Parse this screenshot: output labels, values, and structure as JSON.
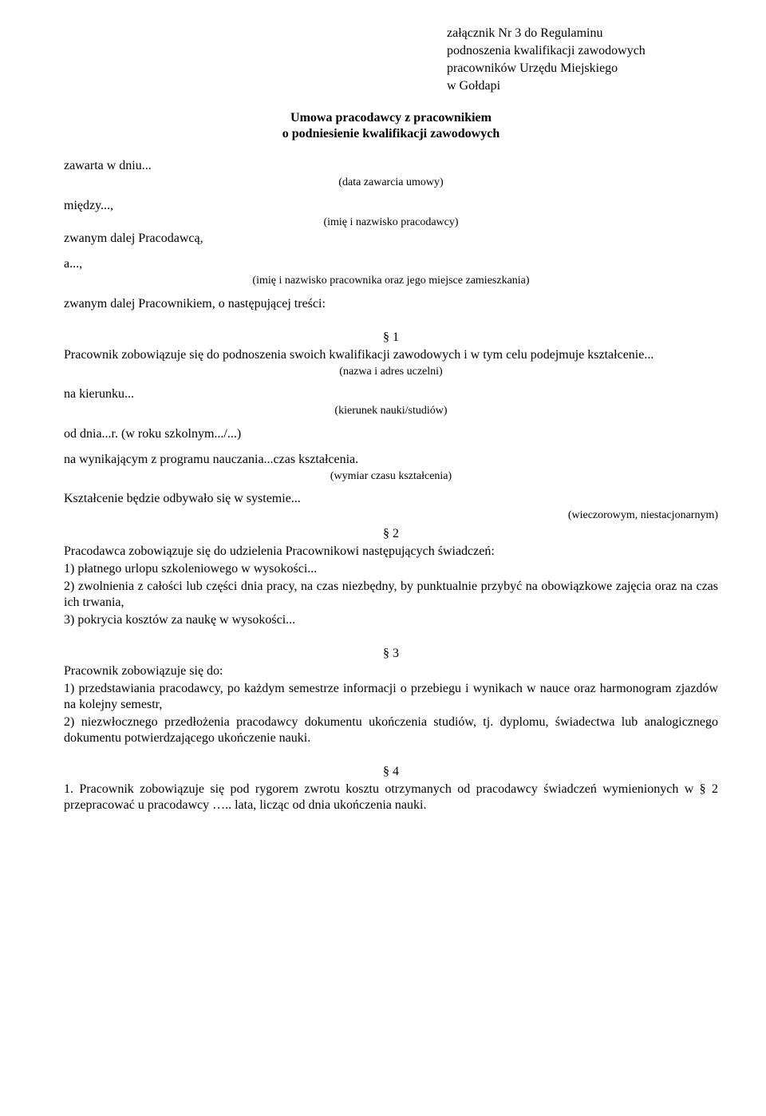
{
  "attachment": {
    "line1": "załącznik Nr 3 do Regulaminu",
    "line2": "podnoszenia kwalifikacji zawodowych",
    "line3": "pracowników Urzędu Miejskiego",
    "line4": "w Gołdapi"
  },
  "title": {
    "line1": "Umowa pracodawcy z pracownikiem",
    "line2": "o podniesienie kwalifikacji zawodowych"
  },
  "intro": {
    "zawarta": "zawarta w dniu...",
    "zawarta_caption": "(data zawarcia umowy)",
    "miedzy": "między...,",
    "miedzy_caption": "(imię i nazwisko pracodawcy)",
    "zwanym_pracodawca": "zwanym dalej Pracodawcą,",
    "a": "a...,",
    "a_caption": "(imię i nazwisko pracownika oraz jego miejsce zamieszkania)",
    "zwanym_pracownikiem": "zwanym dalej Pracownikiem, o następującej treści:"
  },
  "p1": {
    "num": "§ 1",
    "text": "Pracownik zobowiązuje się do podnoszenia swoich kwalifikacji zawodowych i w tym celu podejmuje kształcenie...",
    "caption1": "(nazwa i adres uczelni)",
    "kierunek": "na kierunku...",
    "caption2": "(kierunek nauki/studiów)",
    "od_dnia": "od dnia...r. (w roku szkolnym.../...)",
    "na_wynikajacym": "na wynikającym z programu nauczania...czas kształcenia.",
    "caption3": "(wymiar czasu kształcenia)",
    "ksztalcenie": "Kształcenie będzie odbywało się w systemie...",
    "caption4": "(wieczorowym, niestacjonarnym)"
  },
  "p2": {
    "num": "§ 2",
    "intro": "Pracodawca zobowiązuje się do udzielenia Pracownikowi następujących świadczeń:",
    "item1": "1) płatnego urlopu szkoleniowego w wysokości...",
    "item2": "2) zwolnienia z całości lub części dnia pracy, na czas niezbędny, by punktualnie przybyć na obowiązkowe zajęcia oraz na czas ich trwania,",
    "item3": "3) pokrycia kosztów za naukę w wysokości..."
  },
  "p3": {
    "num": "§ 3",
    "intro": "Pracownik zobowiązuje się do:",
    "item1": "1) przedstawiania pracodawcy, po każdym semestrze informacji o przebiegu i wynikach w nauce oraz harmonogram zjazdów na kolejny semestr,",
    "item2": "2) niezwłocznego przedłożenia pracodawcy dokumentu ukończenia studiów, tj. dyplomu, świadectwa lub analogicznego dokumentu potwierdzającego ukończenie nauki."
  },
  "p4": {
    "num": "§ 4",
    "text": "1. Pracownik zobowiązuje się pod rygorem zwrotu kosztu otrzymanych od pracodawcy świadczeń wymienionych w § 2 przepracować u pracodawcy ….. lata, licząc od dnia ukończenia nauki."
  }
}
